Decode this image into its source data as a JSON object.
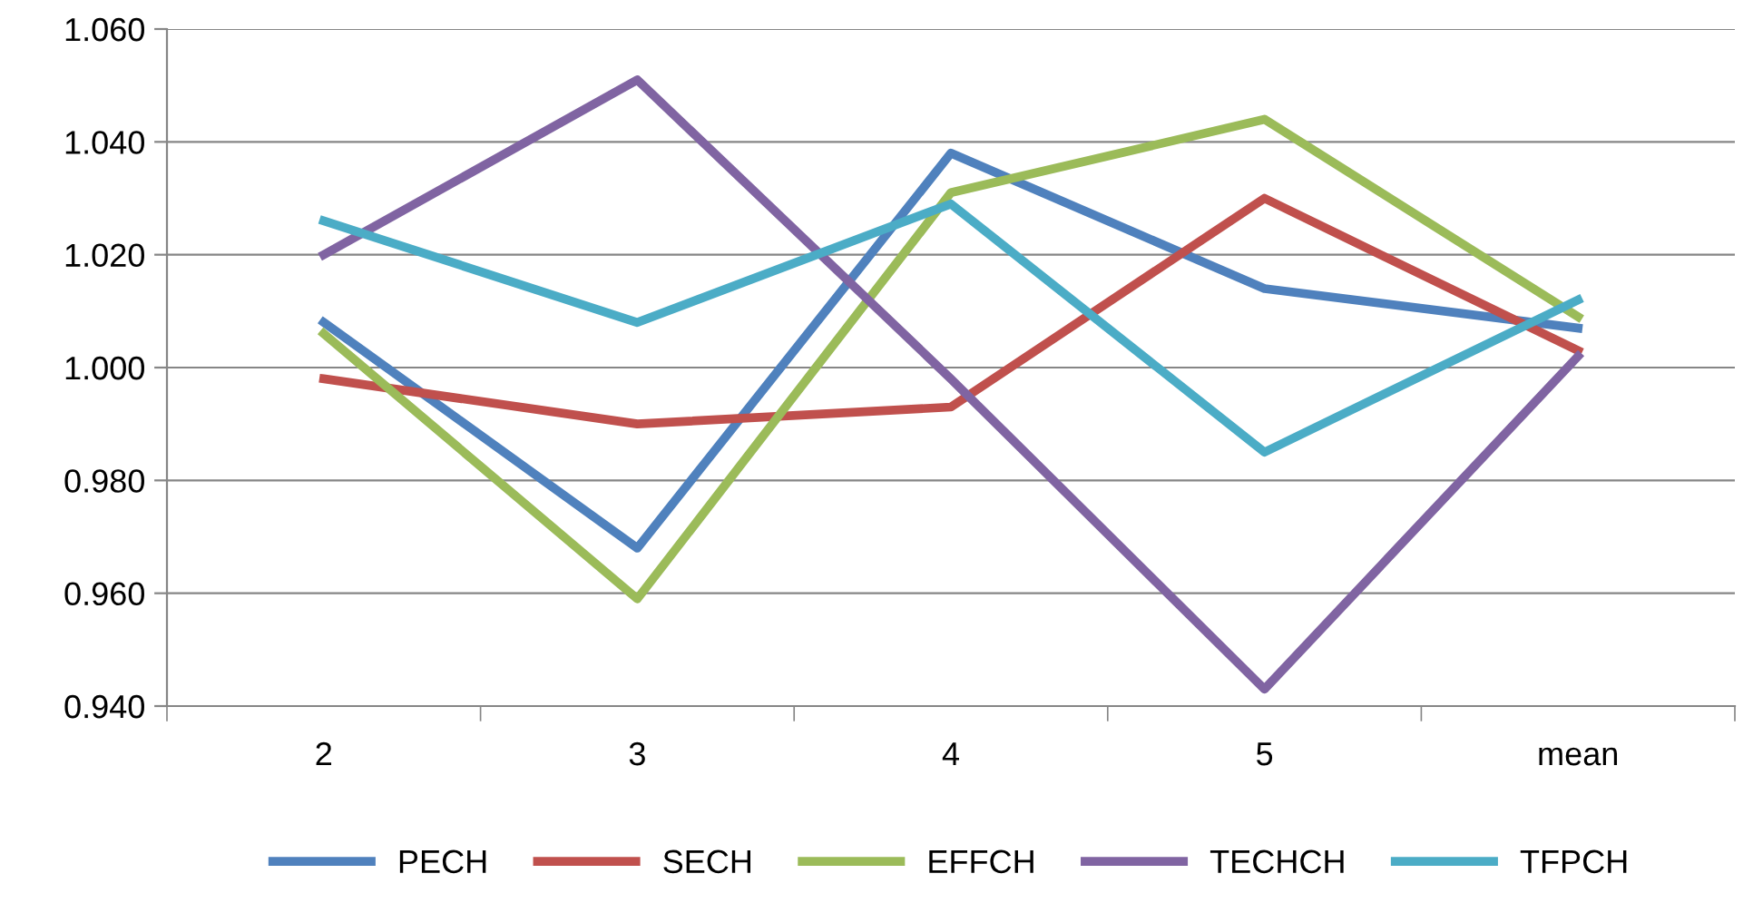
{
  "chart_data": {
    "type": "line",
    "categories": [
      "2",
      "3",
      "4",
      "5",
      "mean"
    ],
    "series": [
      {
        "name": "PECH",
        "color": "#4f81bd",
        "values": [
          1.008,
          0.968,
          1.038,
          1.014,
          1.007
        ]
      },
      {
        "name": "SECH",
        "color": "#c0504d",
        "values": [
          0.998,
          0.99,
          0.993,
          1.03,
          1.003
        ]
      },
      {
        "name": "EFFCH",
        "color": "#9bbb59",
        "values": [
          1.006,
          0.959,
          1.031,
          1.044,
          1.009
        ]
      },
      {
        "name": "TECHCH",
        "color": "#8064a2",
        "values": [
          1.02,
          1.051,
          0.998,
          0.943,
          1.002
        ]
      },
      {
        "name": "TFPCH",
        "color": "#4bacc6",
        "values": [
          1.026,
          1.008,
          1.029,
          0.985,
          1.012
        ]
      }
    ],
    "ylim": [
      0.94,
      1.06
    ],
    "yticks": [
      {
        "value": 0.94,
        "label": "0.940"
      },
      {
        "value": 0.96,
        "label": "0.960"
      },
      {
        "value": 0.98,
        "label": "0.980"
      },
      {
        "value": 1.0,
        "label": "1.000"
      },
      {
        "value": 1.02,
        "label": "1.020"
      },
      {
        "value": 1.04,
        "label": "1.040"
      },
      {
        "value": 1.06,
        "label": "1.060"
      }
    ],
    "grid": "y",
    "legend": "bottom",
    "marker": "none",
    "line_style": "solid"
  }
}
